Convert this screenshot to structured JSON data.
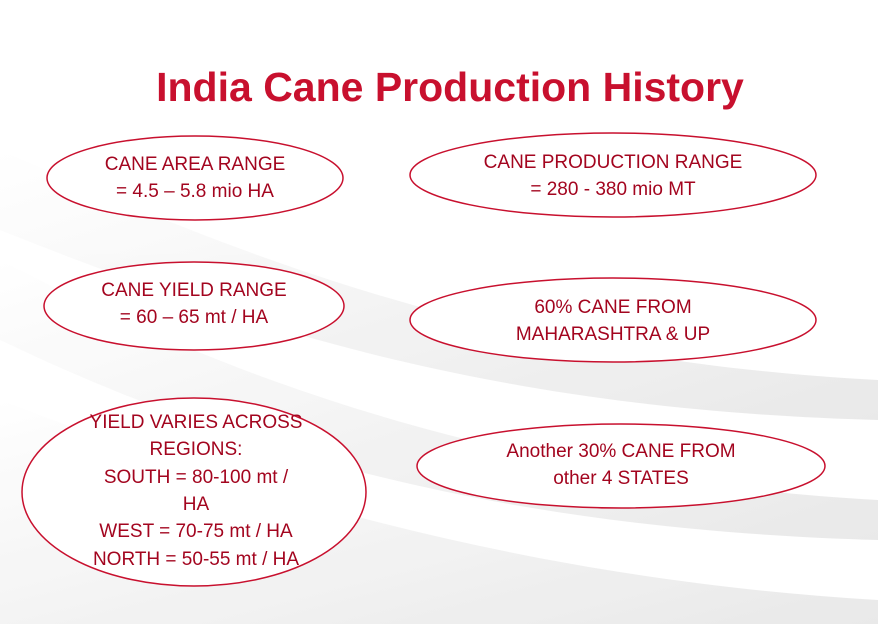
{
  "title": "India Cane Production History",
  "ellipses": [
    {
      "lines": [
        "CANE AREA RANGE",
        "= 4.5 – 5.8 mio HA"
      ]
    },
    {
      "lines": [
        "CANE PRODUCTION RANGE",
        "= 280 - 380 mio MT"
      ]
    },
    {
      "lines": [
        "CANE YIELD RANGE",
        "= 60 – 65 mt / HA"
      ]
    },
    {
      "lines": [
        "60% CANE FROM",
        "MAHARASHTRA & UP"
      ]
    },
    {
      "lines": [
        "YIELD VARIES ACROSS",
        "REGIONS:",
        "SOUTH = 80-100 mt /",
        "HA",
        "WEST = 70-75 mt / HA",
        "NORTH = 50-55 mt / HA"
      ]
    },
    {
      "lines": [
        "Another 30% CANE FROM",
        "other 4 STATES"
      ]
    }
  ]
}
